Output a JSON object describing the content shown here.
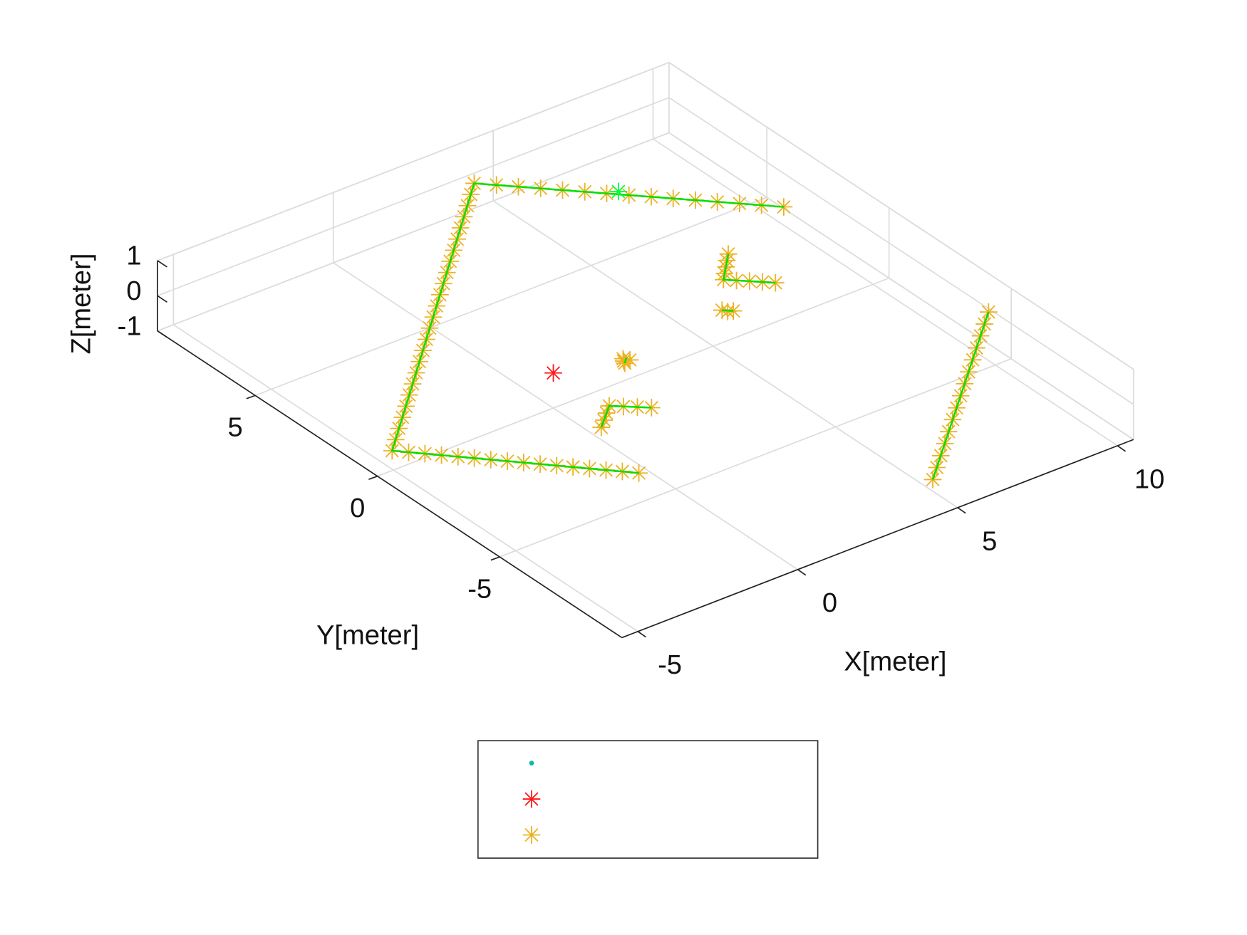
{
  "chart_data": {
    "type": "scatter3d",
    "xlabel": "X[meter]",
    "ylabel": "Y[meter]",
    "zlabel": "Z[meter]",
    "xlim": [
      -5.5,
      10.5
    ],
    "ylim": [
      -10,
      9
    ],
    "zlim": [
      -1,
      1
    ],
    "xticks": [
      -5,
      0,
      5,
      10
    ],
    "yticks": [
      -5,
      0,
      5
    ],
    "zticks": [
      -1,
      0,
      1
    ],
    "grid": true,
    "legend": "bottom",
    "series": [
      {
        "color": "#12b5a6",
        "marker": "dot",
        "z": 0,
        "x": [],
        "y": []
      },
      {
        "color": "#ff1a1a",
        "marker": "star",
        "z": 0,
        "x": [
          0
        ],
        "y": [
          0
        ]
      },
      {
        "color": "#edb120",
        "marker": "star",
        "z": 0,
        "x": [
          -1.3,
          -1.58,
          -1.86,
          -2.14,
          -2.42,
          -2.7,
          -2.98,
          -3.26,
          -3.54,
          -3.82,
          -4.1,
          -4.38,
          -4.66,
          -4.94,
          -5.22,
          -5.5,
          -5.1,
          -4.7,
          -4.3,
          -3.9,
          -3.5,
          -3.1,
          -2.7,
          -2.3,
          -1.9,
          -1.5,
          -1.1,
          -0.7,
          -0.3,
          0.1,
          0.5,
          0.9,
          1.3,
          1.7,
          2.1,
          2.5,
          2.9,
          3.3,
          3.7,
          4.1,
          4.49,
          4.87,
          5.26,
          5.64,
          6.03,
          6.41,
          6.8,
          7.19,
          7.57,
          7.96,
          8.34,
          8.73,
          9.11,
          9.5,
          4.3,
          4.74,
          5.17,
          5.61,
          6.04,
          6.48,
          6.91,
          7.35,
          7.79,
          8.22,
          8.66,
          9.09,
          9.53,
          9.96,
          10.4,
          7.0,
          6.78,
          6.57,
          6.35,
          6.14,
          6.37,
          6.61,
          6.84,
          7.07,
          5.27,
          5.4,
          5.2,
          1.74,
          1.8,
          1.9,
          1.7,
          -0.68,
          -0.41,
          -0.15,
          0.12,
          0.38,
          0.64,
          0.9
        ],
        "y": [
          -5.2,
          -4.89,
          -4.59,
          -4.28,
          -3.97,
          -3.67,
          -3.36,
          -3.05,
          -2.75,
          -2.44,
          -2.13,
          -1.83,
          -1.52,
          -1.21,
          -0.91,
          -0.6,
          -0.22,
          0.17,
          0.55,
          0.93,
          1.32,
          1.7,
          2.08,
          2.47,
          2.85,
          3.23,
          3.62,
          4.0,
          4.38,
          4.77,
          5.15,
          5.53,
          5.92,
          6.3,
          6.68,
          7.07,
          7.45,
          7.83,
          8.22,
          8.6,
          8.2,
          7.8,
          7.4,
          7.0,
          6.6,
          6.2,
          5.8,
          5.4,
          5.0,
          4.6,
          4.2,
          3.8,
          3.4,
          3.0,
          -9.9,
          -9.49,
          -9.09,
          -8.68,
          -8.27,
          -7.86,
          -7.46,
          -7.05,
          -6.64,
          -6.24,
          -5.83,
          -5.42,
          -5.01,
          -4.61,
          -4.2,
          2.0,
          1.77,
          1.53,
          1.3,
          1.07,
          0.84,
          0.62,
          0.39,
          0.16,
          -0.24,
          -0.3,
          -0.1,
          -0.6,
          -0.5,
          -0.65,
          -0.7,
          -2.85,
          -2.61,
          -2.37,
          -2.13,
          -2.37,
          -2.6,
          -2.84
        ]
      },
      {
        "color": "#00e000",
        "marker": "none",
        "line": true,
        "in_legend": false,
        "z": 0,
        "x": [
          -1.3,
          -5.5,
          4.1,
          9.5,
          null,
          4.3,
          10.4,
          null,
          7.0,
          6.14,
          7.07,
          null,
          -0.68,
          0.12,
          0.9,
          null,
          5.2,
          5.4,
          null,
          1.7,
          1.9
        ],
        "y": [
          -5.2,
          -0.6,
          8.6,
          3.0,
          null,
          -9.9,
          -4.2,
          null,
          2.0,
          1.07,
          0.16,
          null,
          -2.85,
          -2.13,
          -2.84,
          null,
          -0.1,
          -0.3,
          null,
          -0.7,
          -0.5
        ]
      },
      {
        "color": "#00ff40",
        "marker": "star",
        "in_legend": false,
        "z": 0,
        "x": [
          6.7
        ],
        "y": [
          6.1
        ]
      }
    ]
  }
}
